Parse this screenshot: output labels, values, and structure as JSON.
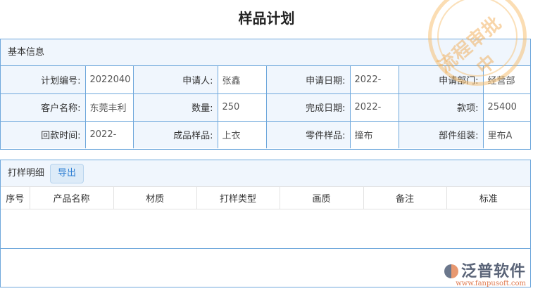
{
  "page": {
    "title": "样品计划"
  },
  "stamp": {
    "text": "流程审批中",
    "color": "#f5b964"
  },
  "basic_info": {
    "heading": "基本信息",
    "rows": [
      [
        {
          "label": "计划编号:",
          "value": "2022040"
        },
        {
          "label": "申请人:",
          "value": "张鑫"
        },
        {
          "label": "申请日期:",
          "value": "2022-"
        },
        {
          "label": "申请部门:",
          "value": "经营部"
        }
      ],
      [
        {
          "label": "客户名称:",
          "value": "东莞丰利"
        },
        {
          "label": "数量:",
          "value": "250"
        },
        {
          "label": "完成日期:",
          "value": "2022-"
        },
        {
          "label": "款项:",
          "value": "25400"
        }
      ],
      [
        {
          "label": "回款时间:",
          "value": "2022-"
        },
        {
          "label": "成品样品:",
          "value": "上衣"
        },
        {
          "label": "零件样品:",
          "value": "撞布"
        },
        {
          "label": "部件组装:",
          "value": "里布A"
        }
      ]
    ]
  },
  "detail": {
    "heading": "打样明细",
    "export_label": "导出",
    "columns": [
      "序号",
      "产品名称",
      "材质",
      "打样类型",
      "画质",
      "备注",
      "标准"
    ]
  },
  "logo": {
    "name": "泛普软件",
    "url": "www.fanpusoft.com"
  }
}
